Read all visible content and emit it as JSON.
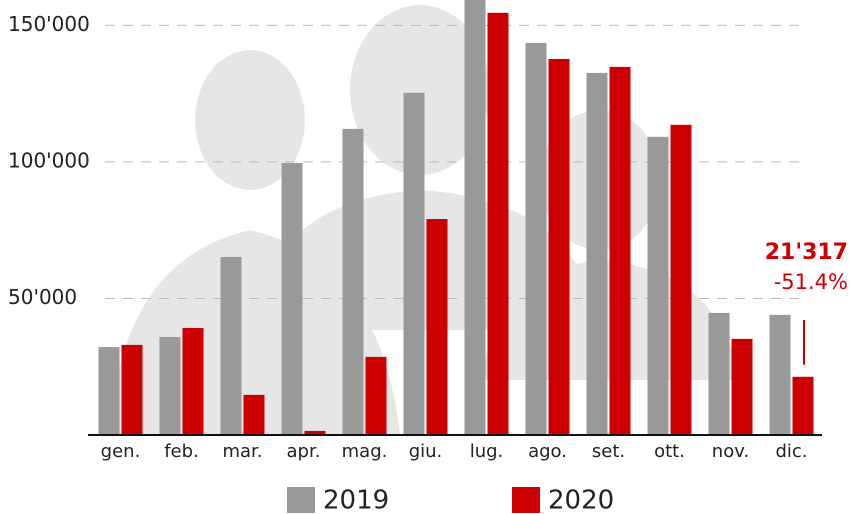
{
  "chart_data": {
    "type": "bar",
    "categories": [
      "gen.",
      "feb.",
      "mar.",
      "apr.",
      "mag.",
      "giu.",
      "lug.",
      "ago.",
      "set.",
      "ott.",
      "nov.",
      "dic."
    ],
    "series": [
      {
        "name": "2019",
        "color": "#999999",
        "values": [
          32200,
          35900,
          65200,
          99600,
          112100,
          125300,
          160000,
          143600,
          132600,
          109200,
          44700,
          44000
        ]
      },
      {
        "name": "2020",
        "color": "#cc0000",
        "values": [
          33000,
          39200,
          14700,
          1500,
          28600,
          79100,
          154600,
          137700,
          134800,
          113600,
          35200,
          21317
        ],
        "value_labels": [
          null,
          null,
          null,
          null,
          null,
          null,
          null,
          null,
          null,
          null,
          null,
          "21'317"
        ]
      }
    ],
    "annotation": "-51.4%",
    "ylim": [
      0,
      159300
    ],
    "yticks": [
      {
        "value": 50000,
        "label": "50'000"
      },
      {
        "value": 100000,
        "label": "100'000"
      },
      {
        "value": 150000,
        "label": "150'000"
      }
    ],
    "grid": true
  }
}
